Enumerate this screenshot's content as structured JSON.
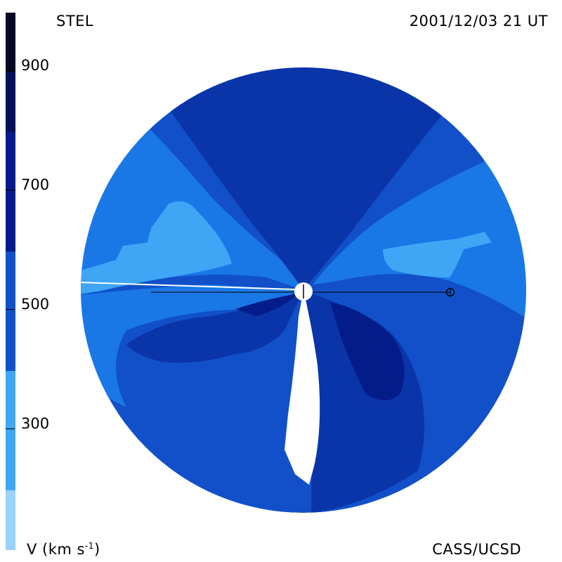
{
  "header": {
    "observatory": "STEL",
    "datetime": "2001/12/03 21 UT"
  },
  "footer": {
    "credit": "CASS/UCSD",
    "unit_prefix": "V (km s",
    "unit_exp": "-1",
    "unit_suffix": ")"
  },
  "colorbar": {
    "labels": [
      "900",
      "700",
      "500",
      "300"
    ],
    "bands": [
      {
        "from": 900,
        "color": "#020726"
      },
      {
        "from": 800,
        "color": "#03105a"
      },
      {
        "from": 700,
        "color": "#041c8a"
      },
      {
        "from": 600,
        "color": "#0a35a8"
      },
      {
        "from": 500,
        "color": "#1150c8"
      },
      {
        "from": 400,
        "color": "#1a78e6"
      },
      {
        "from": 300,
        "color": "#3ea6f5"
      },
      {
        "from": 200,
        "color": "#9ad2fa"
      }
    ]
  },
  "map": {
    "colors": {
      "lightest": "#9ad2fa",
      "light": "#3ea6f5",
      "medium": "#1a78e6",
      "medium_dark": "#1150c8",
      "dark": "#0a35a8",
      "darker": "#041c8a",
      "darkest": "#03105a",
      "void": "#ffffff"
    },
    "markers": [
      "sun-icon",
      "earth-icon"
    ]
  }
}
